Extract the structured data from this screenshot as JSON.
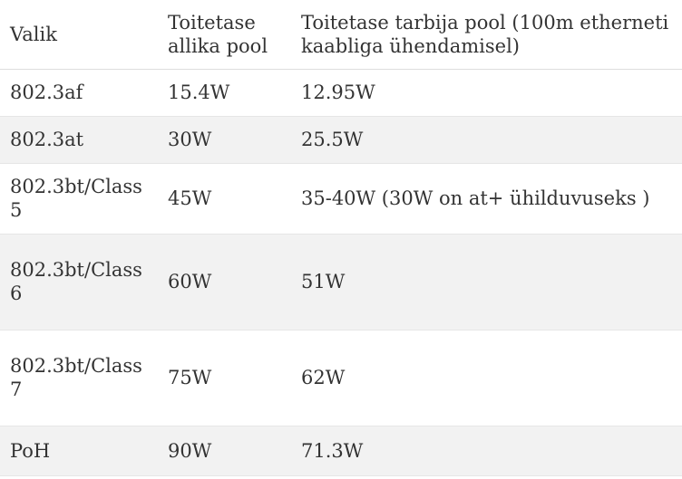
{
  "table": {
    "header": [
      "Valik",
      "Toitetase allika pool",
      "Toitetase tarbija pool (100m etherneti kaabliga ühendamisel)"
    ],
    "rows": [
      [
        "802.3af",
        "15.4W",
        "12.95W"
      ],
      [
        "802.3at",
        "30W",
        "25.5W"
      ],
      [
        "802.3bt/Class 5",
        "45W",
        "35-40W (30W on at+ ühilduvuseks )"
      ],
      [
        "802.3bt/Class 6",
        "60W",
        "51W"
      ],
      [
        "802.3bt/Class 7",
        "75W",
        "62W"
      ],
      [
        "PoH",
        "90W",
        "71.3W"
      ]
    ]
  }
}
